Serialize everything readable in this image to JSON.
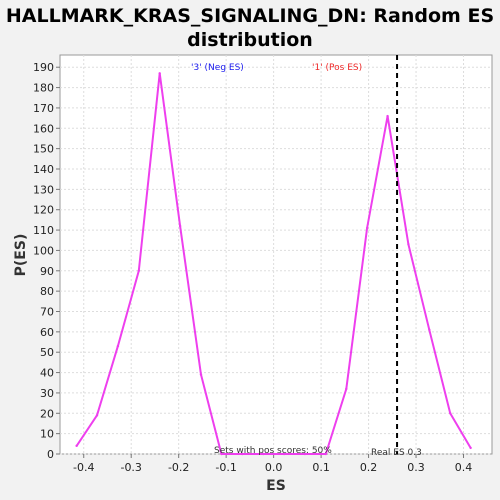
{
  "chart_data": {
    "type": "line",
    "title_line1": "HALLMARK_KRAS_SIGNALING_DN: Random ES",
    "title_line2": "distribution",
    "xlabel": "ES",
    "ylabel": "P(ES)",
    "xlim": [
      -0.45,
      0.46
    ],
    "ylim": [
      0,
      196
    ],
    "x_ticks": [
      -0.4,
      -0.3,
      -0.2,
      -0.1,
      0.0,
      0.1,
      0.2,
      0.3,
      0.4
    ],
    "x_tick_labels": [
      "-0.4",
      "-0.3",
      "-0.2",
      "-0.1",
      "0.0",
      "0.1",
      "0.2",
      "0.3",
      "0.4"
    ],
    "y_ticks": [
      0,
      10,
      20,
      30,
      40,
      50,
      60,
      70,
      80,
      90,
      100,
      110,
      120,
      130,
      140,
      150,
      160,
      170,
      180,
      190
    ],
    "y_tick_labels": [
      "0",
      "10",
      "20",
      "30",
      "40",
      "50",
      "60",
      "70",
      "80",
      "90",
      "100",
      "110",
      "120",
      "130",
      "140",
      "150",
      "160",
      "170",
      "180",
      "190"
    ],
    "grid": true,
    "series": [
      {
        "color": "#ee3fee",
        "x": [
          -0.415,
          -0.372,
          -0.328,
          -0.284,
          -0.24,
          -0.197,
          -0.153,
          -0.11,
          -0.066,
          -0.022,
          0.022,
          0.066,
          0.11,
          0.153,
          0.197,
          0.24,
          0.284,
          0.328,
          0.372,
          0.415
        ],
        "y": [
          4,
          19,
          53,
          90,
          187,
          112,
          39,
          0,
          0,
          0,
          0,
          0,
          0,
          32,
          111,
          166,
          103,
          61,
          20,
          3
        ]
      }
    ],
    "real_es": 0.26,
    "real_es_label": "Real ES 0.3",
    "neg_label": "'3' (Neg ES)",
    "pos_label": "'1' (Pos ES)",
    "pos_scores_label": "Sets with pos scores: 50%",
    "colors": {
      "line": "#ee3fee",
      "neg_label": "#1a1aee",
      "pos_label": "#ee2a2a",
      "grid": "#dddddd",
      "plot_bg": "#ffffff",
      "page_bg": "#f2f2f2"
    }
  }
}
